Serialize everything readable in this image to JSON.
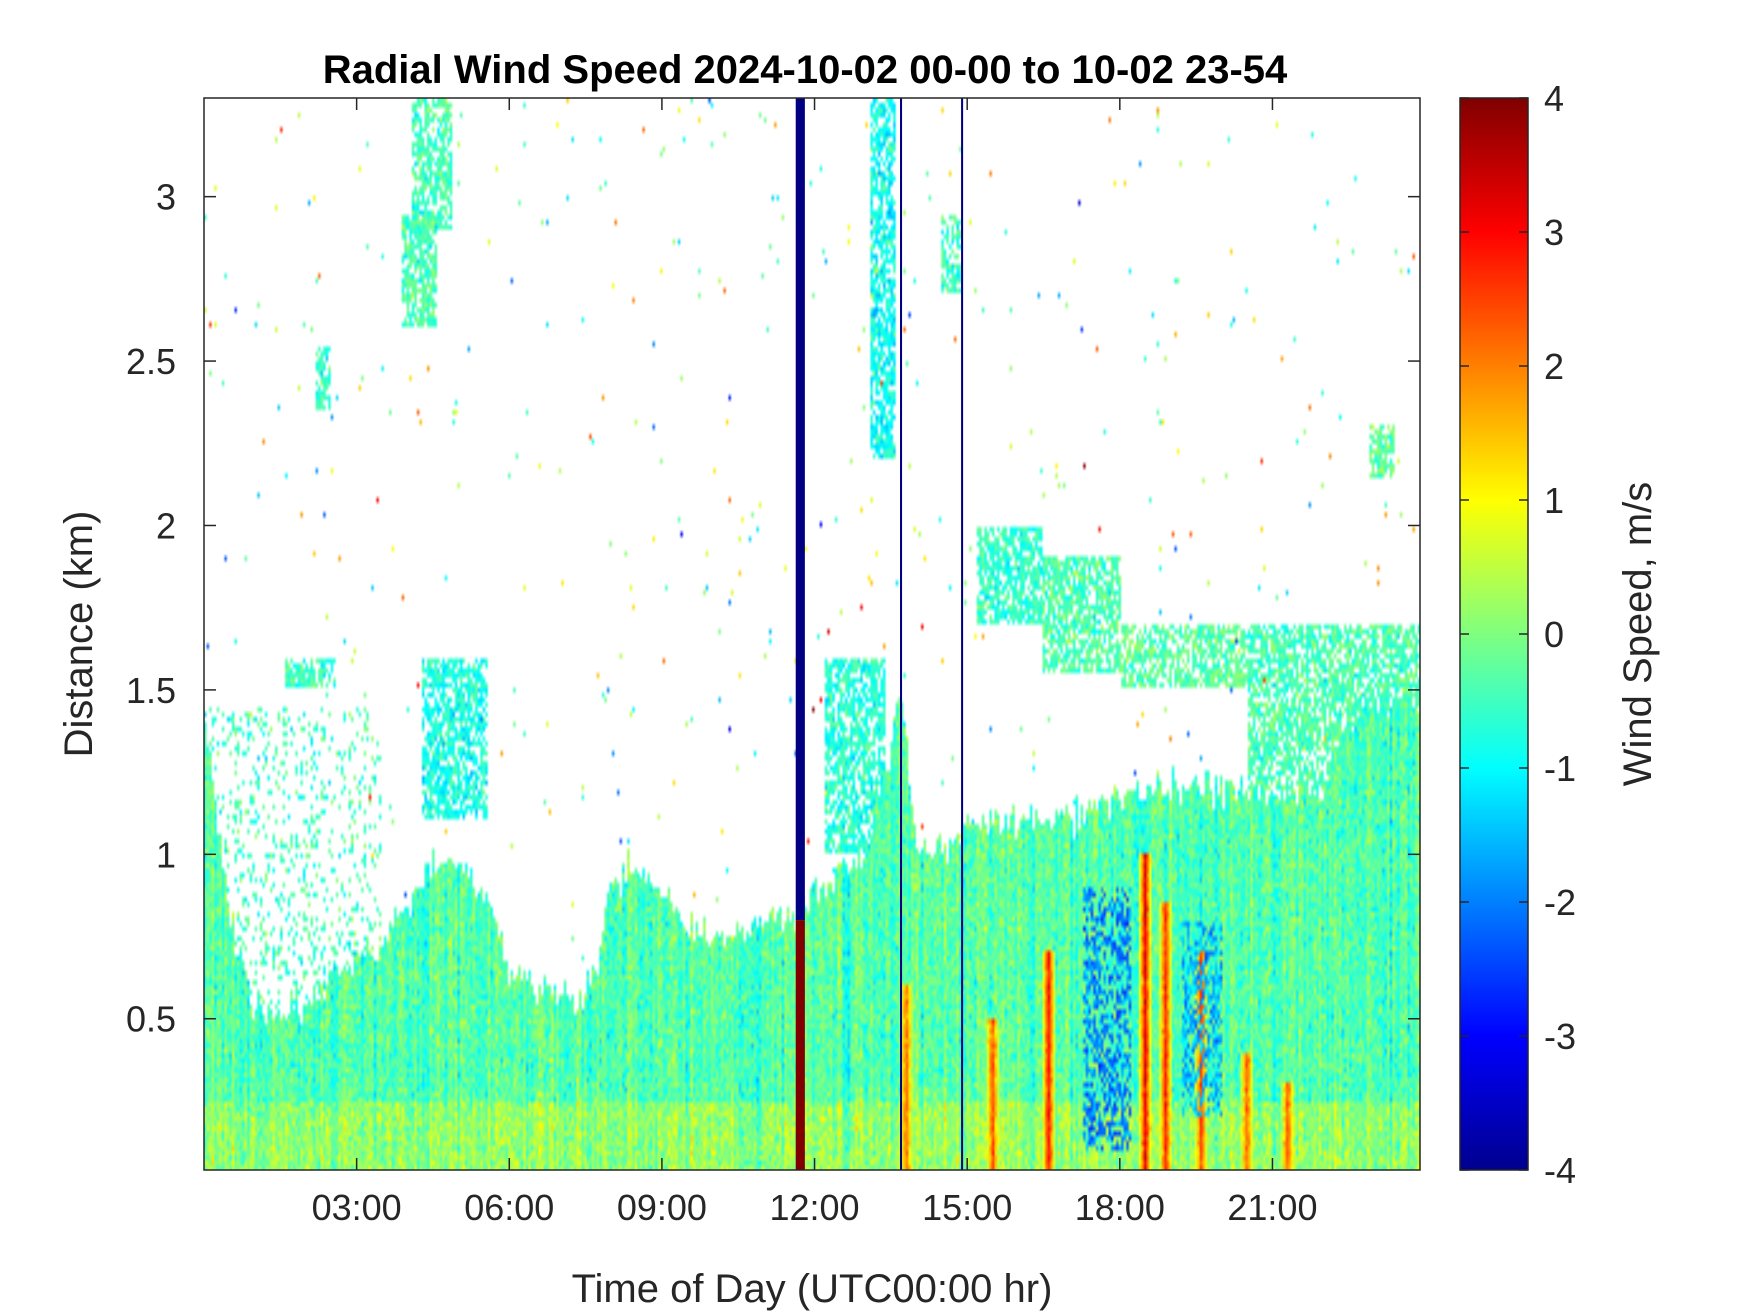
{
  "chart_data": {
    "type": "heatmap",
    "title": "Radial Wind Speed 2024-10-02 00-00 to 10-02 23-54",
    "xlabel": "Time of Day (UTC00:00 hr)",
    "ylabel": "Distance (km)",
    "colorbar_label": "Wind Speed, m/s",
    "xlim": [
      0,
      23.9
    ],
    "ylim": [
      0.04,
      3.3
    ],
    "clim": [
      -4,
      4
    ],
    "colormap": "jet",
    "x_ticks": [
      {
        "value": 3,
        "label": "03:00"
      },
      {
        "value": 6,
        "label": "06:00"
      },
      {
        "value": 9,
        "label": "09:00"
      },
      {
        "value": 12,
        "label": "12:00"
      },
      {
        "value": 15,
        "label": "15:00"
      },
      {
        "value": 18,
        "label": "18:00"
      },
      {
        "value": 21,
        "label": "21:00"
      }
    ],
    "y_ticks": [
      {
        "value": 0.5,
        "label": "0.5"
      },
      {
        "value": 1,
        "label": "1"
      },
      {
        "value": 1.5,
        "label": "1.5"
      },
      {
        "value": 2,
        "label": "2"
      },
      {
        "value": 2.5,
        "label": "2.5"
      },
      {
        "value": 3,
        "label": "3"
      }
    ],
    "colorbar_ticks": [
      {
        "value": 4,
        "label": "4"
      },
      {
        "value": 3,
        "label": "3"
      },
      {
        "value": 2,
        "label": "2"
      },
      {
        "value": 1,
        "label": "1"
      },
      {
        "value": 0,
        "label": "0"
      },
      {
        "value": -1,
        "label": "-1"
      },
      {
        "value": -2,
        "label": "-2"
      },
      {
        "value": -3,
        "label": "-3"
      },
      {
        "value": -4,
        "label": "-4"
      }
    ],
    "signal_top_km": [
      [
        0,
        1.45
      ],
      [
        0.5,
        0.8
      ],
      [
        1.0,
        0.55
      ],
      [
        1.5,
        0.52
      ],
      [
        2.0,
        0.55
      ],
      [
        3.0,
        0.68
      ],
      [
        3.5,
        0.72
      ],
      [
        4.0,
        0.85
      ],
      [
        4.5,
        0.95
      ],
      [
        5.0,
        0.98
      ],
      [
        5.5,
        0.9
      ],
      [
        6.0,
        0.65
      ],
      [
        6.5,
        0.6
      ],
      [
        7.0,
        0.6
      ],
      [
        7.3,
        0.55
      ],
      [
        7.6,
        0.6
      ],
      [
        8.0,
        0.9
      ],
      [
        8.5,
        0.95
      ],
      [
        9.0,
        0.9
      ],
      [
        9.5,
        0.78
      ],
      [
        10.0,
        0.75
      ],
      [
        11.0,
        0.78
      ],
      [
        11.6,
        0.82
      ],
      [
        12.0,
        0.9
      ],
      [
        12.5,
        0.95
      ],
      [
        13.0,
        1.0
      ],
      [
        13.5,
        1.3
      ],
      [
        13.7,
        1.5
      ],
      [
        14.0,
        1.0
      ],
      [
        14.5,
        1.0
      ],
      [
        15.0,
        1.1
      ],
      [
        16.0,
        1.1
      ],
      [
        16.5,
        1.1
      ],
      [
        17.0,
        1.1
      ],
      [
        17.5,
        1.15
      ],
      [
        18.0,
        1.2
      ],
      [
        19.0,
        1.2
      ],
      [
        20.0,
        1.2
      ],
      [
        21.0,
        1.2
      ],
      [
        22.0,
        1.2
      ],
      [
        22.5,
        1.4
      ],
      [
        23.0,
        1.45
      ],
      [
        23.9,
        1.45
      ]
    ],
    "cloud_regions": [
      {
        "x": [
          1.6,
          2.6
        ],
        "y": [
          1.5,
          1.6
        ],
        "mean": -0.5
      },
      {
        "x": [
          2.2,
          2.5
        ],
        "y": [
          2.35,
          2.55
        ],
        "mean": -0.6
      },
      {
        "x": [
          3.9,
          4.6
        ],
        "y": [
          2.6,
          2.95
        ],
        "mean": -0.4
      },
      {
        "x": [
          4.1,
          4.9
        ],
        "y": [
          2.9,
          3.3
        ],
        "mean": -0.5
      },
      {
        "x": [
          4.3,
          5.6
        ],
        "y": [
          1.1,
          1.6
        ],
        "mean": -0.8
      },
      {
        "x": [
          12.2,
          13.4
        ],
        "y": [
          1.0,
          1.6
        ],
        "mean": -0.7
      },
      {
        "x": [
          13.1,
          13.6
        ],
        "y": [
          2.2,
          3.3
        ],
        "mean": -0.9
      },
      {
        "x": [
          14.5,
          14.9
        ],
        "y": [
          2.7,
          2.95
        ],
        "mean": -0.5
      },
      {
        "x": [
          15.2,
          16.5
        ],
        "y": [
          1.7,
          2.0
        ],
        "mean": -0.6
      },
      {
        "x": [
          16.5,
          18.0
        ],
        "y": [
          1.55,
          1.9
        ],
        "mean": -0.4
      },
      {
        "x": [
          18.0,
          20.5
        ],
        "y": [
          1.5,
          1.7
        ],
        "mean": -0.3
      },
      {
        "x": [
          20.5,
          23.9
        ],
        "y": [
          1.2,
          1.7
        ],
        "mean": -0.4
      },
      {
        "x": [
          22.9,
          23.4
        ],
        "y": [
          2.15,
          2.3
        ],
        "mean": -0.2
      }
    ],
    "speckle_region": {
      "x": [
        0,
        3.5
      ],
      "y": [
        0.5,
        1.45
      ],
      "mean": -0.5
    },
    "vertical_lines": [
      {
        "x": 11.72,
        "y": [
          0.8,
          3.3
        ],
        "value": -4,
        "width_hr": 0.18
      },
      {
        "x": 11.72,
        "y": [
          0.04,
          0.8
        ],
        "value": 4,
        "width_hr": 0.18
      },
      {
        "x": 13.7,
        "y": [
          0.04,
          3.3
        ],
        "value": -4,
        "width_hr": 0.04
      },
      {
        "x": 14.9,
        "y": [
          0.04,
          3.3
        ],
        "value": -4,
        "width_hr": 0.04
      }
    ],
    "updraft_streaks": [
      {
        "x": 13.8,
        "value": 2.2,
        "top": 0.6
      },
      {
        "x": 15.5,
        "value": 2.5,
        "top": 0.5
      },
      {
        "x": 16.6,
        "value": 3.0,
        "top": 0.7
      },
      {
        "x": 18.5,
        "value": 3.2,
        "top": 1.0
      },
      {
        "x": 18.9,
        "value": 2.8,
        "top": 0.85
      },
      {
        "x": 19.6,
        "value": 2.6,
        "top": 0.7
      },
      {
        "x": 20.5,
        "value": 2.3,
        "top": 0.4
      },
      {
        "x": 21.3,
        "value": 2.4,
        "top": 0.3
      }
    ],
    "downdraft_regions": [
      {
        "x": [
          17.3,
          18.2
        ],
        "y": [
          0.1,
          0.9
        ],
        "value": -2.0
      },
      {
        "x": [
          19.2,
          20.0
        ],
        "y": [
          0.2,
          0.8
        ],
        "value": -1.6
      }
    ]
  }
}
